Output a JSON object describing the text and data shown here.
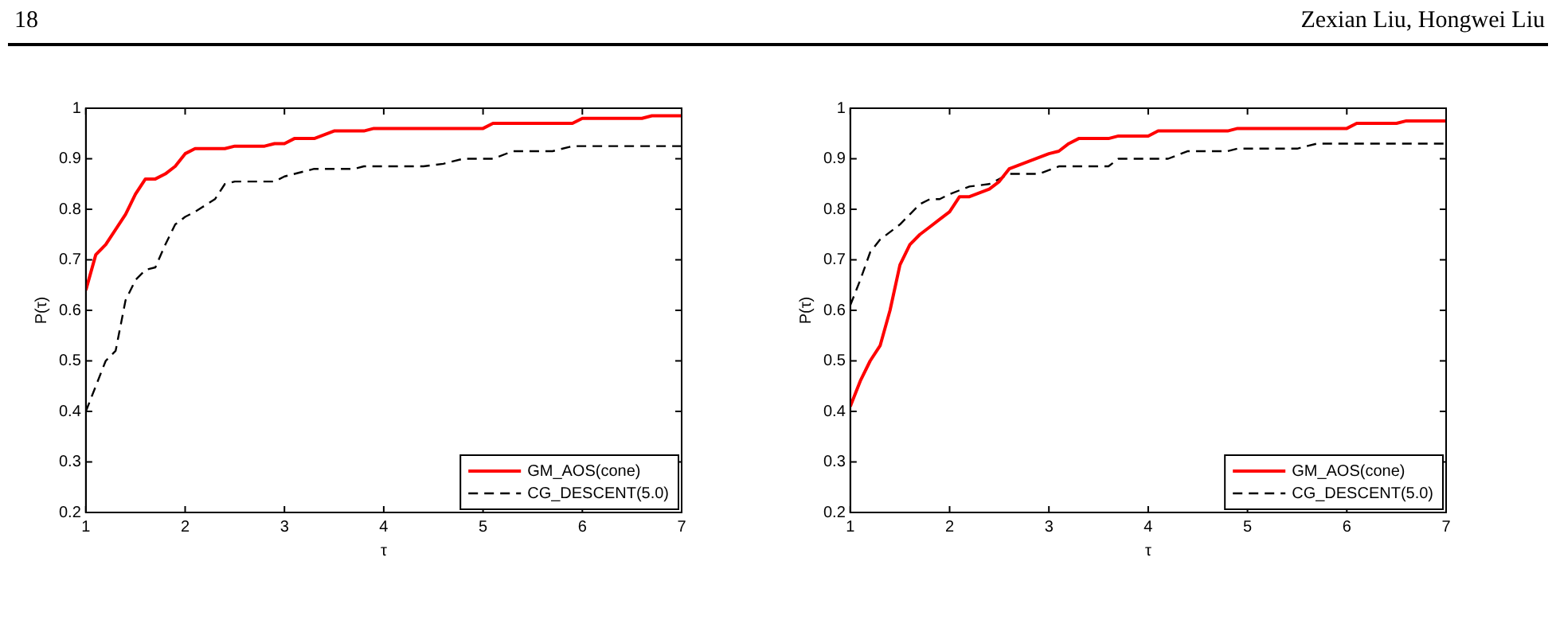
{
  "chart_data": [
    {
      "type": "line",
      "xlabel": "τ",
      "ylabel": "P(τ)",
      "xlim": [
        1,
        7
      ],
      "ylim": [
        0.2,
        1
      ],
      "xticks": [
        1,
        2,
        3,
        4,
        5,
        6,
        7
      ],
      "yticks": [
        0.2,
        0.3,
        0.4,
        0.5,
        0.6,
        0.7,
        0.8,
        0.9,
        1
      ],
      "grid": false,
      "legend": "bottom right",
      "marker": "none",
      "annotations": [
        "18"
      ],
      "series": [
        {
          "name": "GM_AOS(cone)",
          "color": "#ff0000",
          "line_style": "solid",
          "x": [
            1,
            1.1,
            1.2,
            1.3,
            1.4,
            1.5,
            1.6,
            1.7,
            1.8,
            1.9,
            2.0,
            2.1,
            2.4,
            2.5,
            2.8,
            2.9,
            3.0,
            3.1,
            3.3,
            3.5,
            3.8,
            3.9,
            5.0,
            5.1,
            5.9,
            6.0,
            6.6,
            6.7,
            7
          ],
          "values": [
            0.64,
            0.71,
            0.73,
            0.76,
            0.79,
            0.83,
            0.86,
            0.86,
            0.87,
            0.885,
            0.91,
            0.92,
            0.92,
            0.925,
            0.925,
            0.93,
            0.93,
            0.94,
            0.94,
            0.955,
            0.955,
            0.96,
            0.96,
            0.97,
            0.97,
            0.98,
            0.98,
            0.985,
            0.985
          ]
        },
        {
          "name": "CG_DESCENT(5.0)",
          "color": "#000000",
          "line_style": "dashed",
          "x": [
            1,
            1.1,
            1.2,
            1.3,
            1.4,
            1.5,
            1.6,
            1.7,
            1.8,
            1.9,
            2.0,
            2.1,
            2.3,
            2.4,
            2.5,
            2.9,
            3.0,
            3.3,
            3.7,
            3.8,
            4.4,
            4.6,
            4.8,
            5.1,
            5.3,
            5.7,
            5.9,
            7
          ],
          "values": [
            0.4,
            0.45,
            0.5,
            0.52,
            0.62,
            0.66,
            0.68,
            0.685,
            0.73,
            0.77,
            0.785,
            0.795,
            0.82,
            0.85,
            0.855,
            0.855,
            0.865,
            0.88,
            0.88,
            0.885,
            0.885,
            0.89,
            0.9,
            0.9,
            0.915,
            0.915,
            0.925,
            0.925
          ]
        }
      ]
    },
    {
      "type": "line",
      "xlabel": "τ",
      "ylabel": "P(τ)",
      "xlim": [
        1,
        7
      ],
      "ylim": [
        0.2,
        1
      ],
      "xticks": [
        1,
        2,
        3,
        4,
        5,
        6,
        7
      ],
      "yticks": [
        0.2,
        0.3,
        0.4,
        0.5,
        0.6,
        0.7,
        0.8,
        0.9,
        1
      ],
      "grid": false,
      "legend": "bottom right",
      "marker": "none",
      "annotations": [
        "Zexian Liu, Hongwei Liu"
      ],
      "series": [
        {
          "name": "GM_AOS(cone)",
          "color": "#ff0000",
          "line_style": "solid",
          "x": [
            1,
            1.1,
            1.2,
            1.3,
            1.4,
            1.5,
            1.6,
            1.7,
            1.8,
            1.9,
            2.0,
            2.1,
            2.2,
            2.4,
            2.5,
            2.6,
            2.8,
            3.0,
            3.1,
            3.2,
            3.3,
            3.6,
            3.7,
            4.0,
            4.1,
            4.8,
            4.9,
            6.0,
            6.1,
            6.5,
            6.6,
            7
          ],
          "values": [
            0.41,
            0.46,
            0.5,
            0.53,
            0.6,
            0.69,
            0.73,
            0.75,
            0.765,
            0.78,
            0.795,
            0.825,
            0.825,
            0.84,
            0.855,
            0.88,
            0.895,
            0.91,
            0.915,
            0.93,
            0.94,
            0.94,
            0.945,
            0.945,
            0.955,
            0.955,
            0.96,
            0.96,
            0.97,
            0.97,
            0.975,
            0.975
          ]
        },
        {
          "name": "CG_DESCENT(5.0)",
          "color": "#000000",
          "line_style": "dashed",
          "x": [
            1,
            1.1,
            1.2,
            1.3,
            1.5,
            1.6,
            1.7,
            1.8,
            1.9,
            2.0,
            2.2,
            2.4,
            2.6,
            2.9,
            3.1,
            3.6,
            3.7,
            4.2,
            4.4,
            4.8,
            4.9,
            5.5,
            5.7,
            7
          ],
          "values": [
            0.61,
            0.66,
            0.715,
            0.74,
            0.77,
            0.79,
            0.81,
            0.82,
            0.82,
            0.83,
            0.845,
            0.85,
            0.87,
            0.87,
            0.885,
            0.885,
            0.9,
            0.9,
            0.915,
            0.915,
            0.92,
            0.92,
            0.93,
            0.93
          ]
        }
      ]
    }
  ]
}
